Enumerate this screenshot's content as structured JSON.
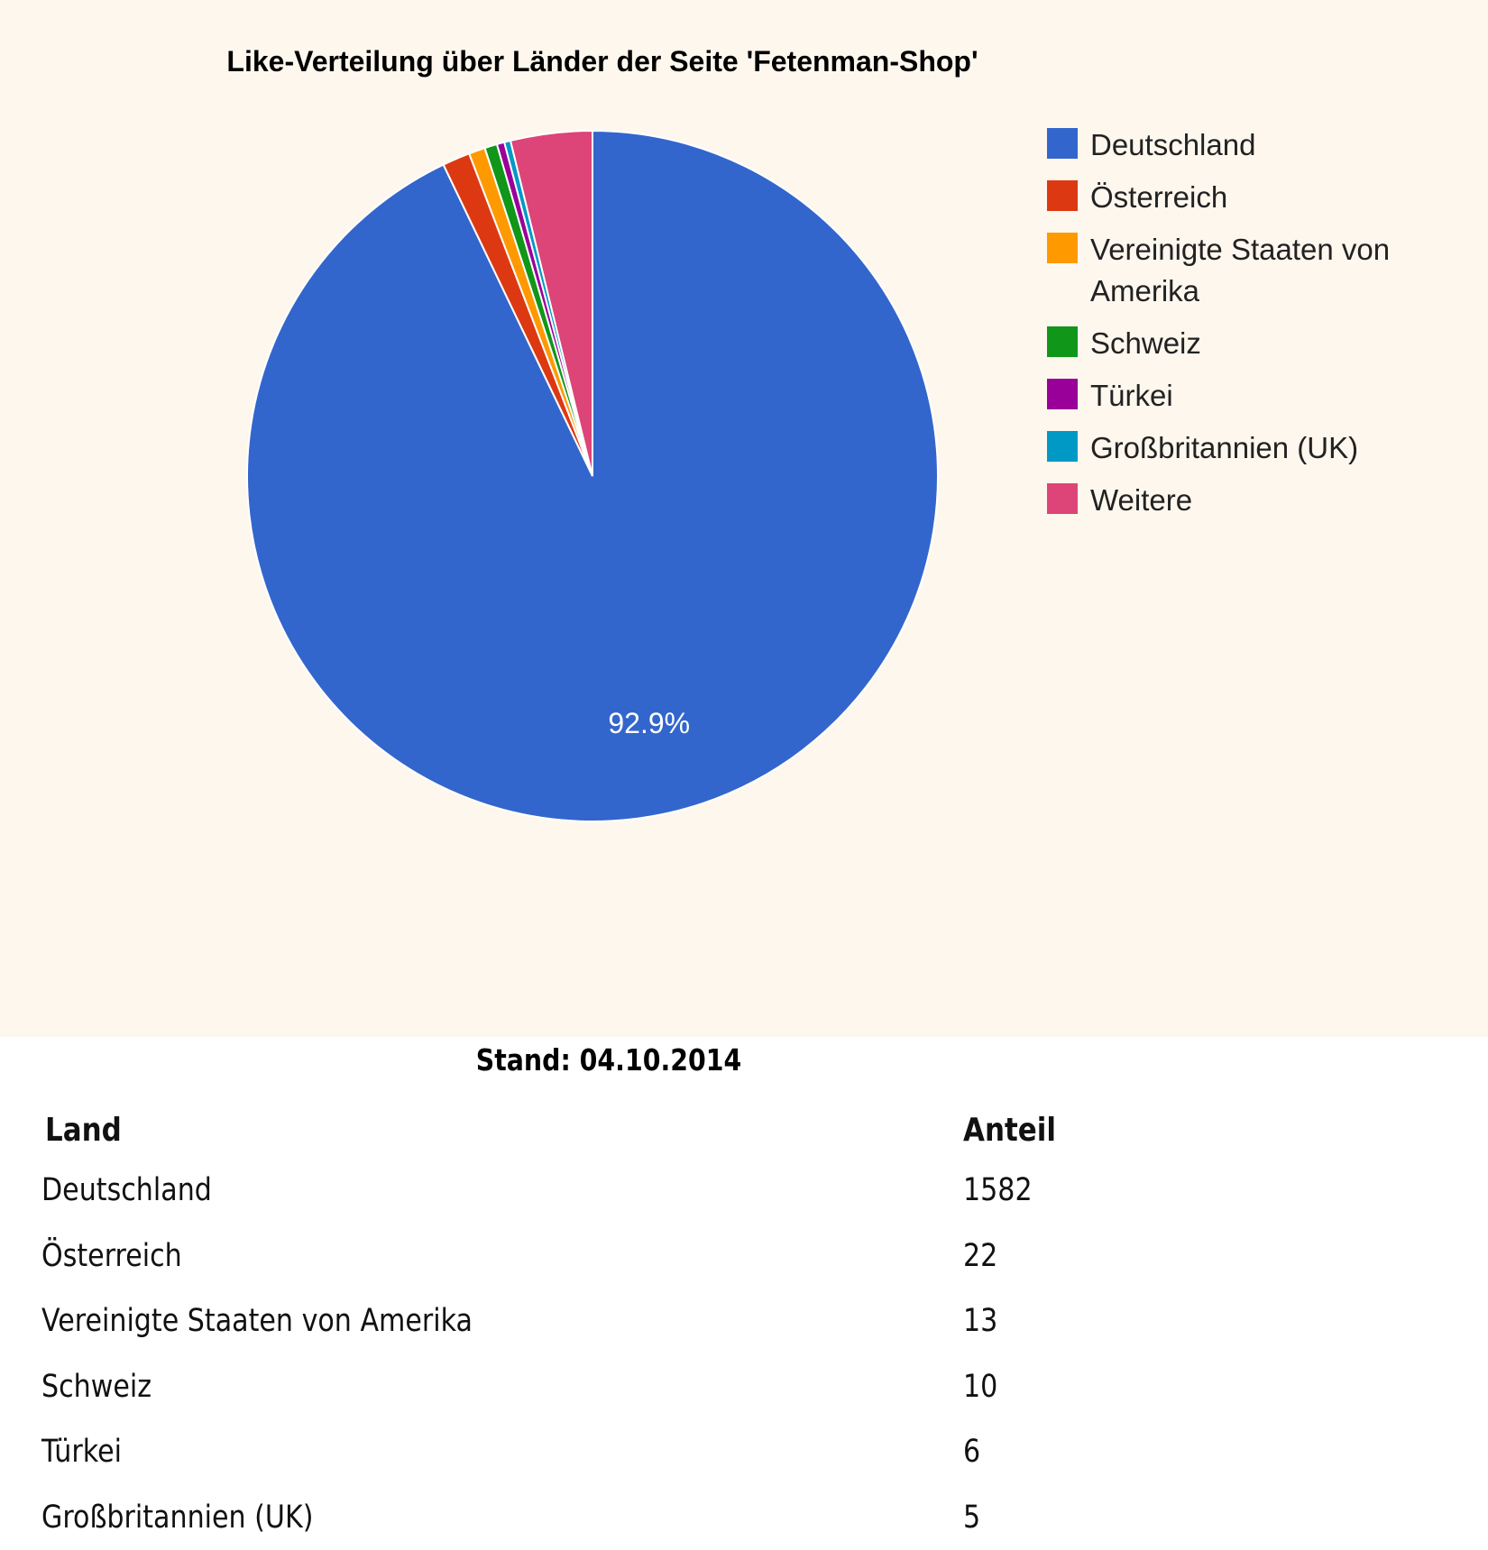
{
  "chart_data": {
    "type": "pie",
    "title": "Like-Verteilung über Länder der Seite 'Fetenman-Shop'",
    "categories": [
      "Deutschland",
      "Österreich",
      "Vereinigte Staaten von Amerika",
      "Schweiz",
      "Türkei",
      "Großbritannien (UK)",
      "Weitere"
    ],
    "values": [
      1582,
      22,
      13,
      10,
      6,
      5,
      65
    ],
    "colors": [
      "#3366cc",
      "#dc3912",
      "#ff9900",
      "#109618",
      "#990099",
      "#0099c6",
      "#dd4477"
    ],
    "slice_labels": [
      "92.9%",
      "",
      "",
      "",
      "",
      "",
      ""
    ],
    "legend_position": "right"
  },
  "legend": [
    {
      "label": "Deutschland",
      "color": "#3366cc"
    },
    {
      "label": "Österreich",
      "color": "#dc3912"
    },
    {
      "label": "Vereinigte Staaten von Amerika",
      "color": "#ff9900"
    },
    {
      "label": "Schweiz",
      "color": "#109618"
    },
    {
      "label": "Türkei",
      "color": "#990099"
    },
    {
      "label": "Großbritannien (UK)",
      "color": "#0099c6"
    },
    {
      "label": "Weitere",
      "color": "#dd4477"
    }
  ],
  "stand": "Stand: 04.10.2014",
  "table": {
    "headers": [
      "Land",
      "Anteil"
    ],
    "rows": [
      [
        "Deutschland",
        "1582"
      ],
      [
        "Österreich",
        "22"
      ],
      [
        "Vereinigte Staaten von Amerika",
        "13"
      ],
      [
        "Schweiz",
        "10"
      ],
      [
        "Türkei",
        "6"
      ],
      [
        "Großbritannien (UK)",
        "5"
      ]
    ]
  }
}
